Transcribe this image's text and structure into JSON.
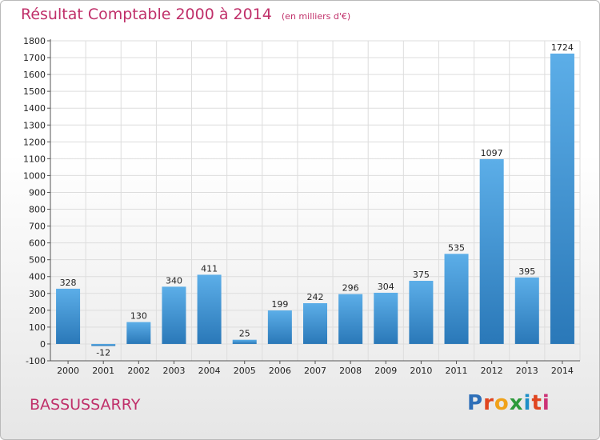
{
  "header": {
    "title": "Résultat Comptable 2000 à 2014",
    "subtitle": "(en milliers d'€)"
  },
  "footer": {
    "place": "BASSUSSARRY",
    "logo": [
      "P",
      "r",
      "o",
      "x",
      "i",
      "t",
      "i"
    ]
  },
  "colors": {
    "title": "#c0306a",
    "bar_top": "#5caee8",
    "bar_bottom": "#2a78b8",
    "grid": "#dddddd"
  },
  "chart_data": {
    "type": "bar",
    "title": "Résultat Comptable 2000 à 2014",
    "subtitle": "(en milliers d'€)",
    "categories": [
      "2000",
      "2001",
      "2002",
      "2003",
      "2004",
      "2005",
      "2006",
      "2007",
      "2008",
      "2009",
      "2010",
      "2011",
      "2012",
      "2013",
      "2014"
    ],
    "values": [
      328,
      -12,
      130,
      340,
      411,
      25,
      199,
      242,
      296,
      304,
      375,
      535,
      1097,
      395,
      1724
    ],
    "ylim": [
      -100,
      1800
    ],
    "yticks": [
      -100,
      0,
      100,
      200,
      300,
      400,
      500,
      600,
      700,
      800,
      900,
      1000,
      1100,
      1200,
      1300,
      1400,
      1500,
      1600,
      1700,
      1800
    ],
    "grid": true,
    "xlabel": "",
    "ylabel": ""
  }
}
